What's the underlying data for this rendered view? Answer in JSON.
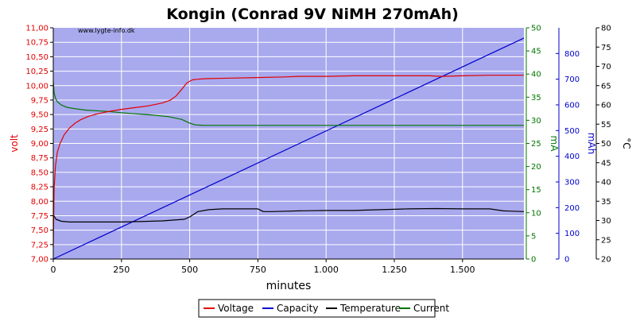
{
  "chart_data": {
    "type": "line",
    "title": "Kongin (Conrad 9V NiMH 270mAh)",
    "watermark": "www.lygte-info.dk",
    "xlabel": "minutes",
    "x_ticks": [
      0,
      250,
      500,
      750,
      1000,
      1250,
      1500
    ],
    "x_tick_labels": [
      "0",
      "250",
      "500",
      "750",
      "1.000",
      "1.250",
      "1.500"
    ],
    "xlim": [
      0,
      1725
    ],
    "colors": {
      "plot_background": "#a9a9ee",
      "grid": "#ffffff",
      "voltage": "#e30000",
      "current": "#007500",
      "capacity": "#0000cc",
      "temperature": "#000000"
    },
    "axes": {
      "volt": {
        "label": "volt",
        "ylim": [
          7.0,
          11.0
        ],
        "ticks": [
          7.0,
          7.25,
          7.5,
          7.75,
          8.0,
          8.25,
          8.5,
          8.75,
          9.0,
          9.25,
          9.5,
          9.75,
          10.0,
          10.25,
          10.5,
          10.75,
          11.0
        ],
        "tick_labels": [
          "7,00",
          "7,25",
          "7,50",
          "7,75",
          "8,00",
          "8,25",
          "8,50",
          "8,75",
          "9,00",
          "9,25",
          "9,50",
          "9,75",
          "10,00",
          "10,25",
          "10,50",
          "10,75",
          "11,00"
        ]
      },
      "ma": {
        "label": "mA",
        "ylim": [
          0,
          50
        ],
        "ticks": [
          0,
          5,
          10,
          15,
          20,
          25,
          30,
          35,
          40,
          45,
          50
        ],
        "tick_labels": [
          "0",
          "5",
          "10",
          "15",
          "20",
          "25",
          "30",
          "35",
          "40",
          "45",
          "50"
        ]
      },
      "mah": {
        "label": "mAh",
        "ylim": [
          0,
          900
        ],
        "ticks": [
          0,
          100,
          200,
          300,
          400,
          500,
          600,
          700,
          800
        ],
        "tick_labels": [
          "0",
          "100",
          "200",
          "300",
          "400",
          "500",
          "600",
          "700",
          "800"
        ]
      },
      "temp": {
        "label": "°C",
        "ylim": [
          20,
          80
        ],
        "ticks": [
          20,
          25,
          30,
          35,
          40,
          45,
          50,
          55,
          60,
          65,
          70,
          75,
          80
        ],
        "tick_labels": [
          "20",
          "25",
          "30",
          "35",
          "40",
          "45",
          "50",
          "55",
          "60",
          "65",
          "70",
          "75",
          "80"
        ]
      }
    },
    "series": [
      {
        "name": "Voltage",
        "axis": "volt",
        "x": [
          0,
          3,
          8,
          15,
          25,
          40,
          60,
          80,
          100,
          130,
          160,
          200,
          250,
          300,
          350,
          400,
          430,
          450,
          470,
          490,
          510,
          530,
          560,
          650,
          750,
          850,
          900,
          1000,
          1100,
          1200,
          1300,
          1380,
          1420,
          1500,
          1600,
          1725
        ],
        "y": [
          7.2,
          8.2,
          8.6,
          8.85,
          9.0,
          9.15,
          9.27,
          9.35,
          9.41,
          9.47,
          9.51,
          9.55,
          9.59,
          9.62,
          9.65,
          9.7,
          9.75,
          9.82,
          9.93,
          10.05,
          10.1,
          10.11,
          10.12,
          10.13,
          10.14,
          10.15,
          10.16,
          10.16,
          10.17,
          10.17,
          10.17,
          10.17,
          10.16,
          10.17,
          10.18,
          10.18
        ]
      },
      {
        "name": "Capacity",
        "axis": "mah",
        "x": [
          0,
          1725
        ],
        "y": [
          0,
          860
        ]
      },
      {
        "name": "Temperature",
        "axis": "temp",
        "x": [
          0,
          3,
          10,
          30,
          60,
          150,
          250,
          300,
          400,
          480,
          500,
          530,
          570,
          620,
          700,
          750,
          770,
          800,
          900,
          1000,
          1100,
          1200,
          1300,
          1400,
          1500,
          1600,
          1650,
          1725
        ],
        "y": [
          31.2,
          31.2,
          30.3,
          29.8,
          29.6,
          29.6,
          29.6,
          29.7,
          29.9,
          30.3,
          30.9,
          32.3,
          32.8,
          33.0,
          33.0,
          33.0,
          32.3,
          32.3,
          32.5,
          32.6,
          32.6,
          32.8,
          33.0,
          33.1,
          33.0,
          33.0,
          32.5,
          32.3
        ]
      },
      {
        "name": "Current",
        "axis": "ma",
        "x": [
          0,
          3,
          8,
          15,
          30,
          50,
          80,
          120,
          200,
          280,
          350,
          420,
          470,
          500,
          520,
          550,
          650,
          800,
          1000,
          1200,
          1500,
          1725
        ],
        "y": [
          38.5,
          36.0,
          34.8,
          34.0,
          33.3,
          32.8,
          32.5,
          32.2,
          31.9,
          31.5,
          31.2,
          30.8,
          30.2,
          29.4,
          29.0,
          28.9,
          28.9,
          28.9,
          28.9,
          28.9,
          28.9,
          28.9
        ]
      }
    ],
    "legend": {
      "position": "bottom-center",
      "entries": [
        "Voltage",
        "Capacity",
        "Temperature",
        "Current"
      ]
    }
  }
}
